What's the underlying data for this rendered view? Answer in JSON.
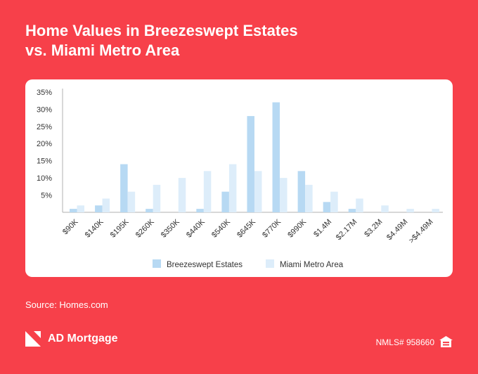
{
  "header": {
    "title_line1": "Home Values in Breezeswept Estates",
    "title_line2": "vs. Miami Metro Area"
  },
  "chart_data": {
    "type": "bar",
    "categories": [
      "$90K",
      "$140K",
      "$195K",
      "$260K",
      "$350K",
      "$440K",
      "$540K",
      "$645K",
      "$770K",
      "$990K",
      "$1.4M",
      "$2.17M",
      "$3.2M",
      "$4.49M",
      ">$4.49M"
    ],
    "series": [
      {
        "name": "Breezeswept Estates",
        "values": [
          1,
          2,
          14,
          1,
          0,
          1,
          6,
          28,
          32,
          12,
          3,
          1,
          0,
          0,
          0
        ]
      },
      {
        "name": "Miami Metro Area",
        "values": [
          2,
          4,
          6,
          8,
          10,
          12,
          14,
          12,
          10,
          8,
          6,
          4,
          2,
          1,
          1
        ]
      }
    ],
    "yticks": [
      5,
      10,
      15,
      20,
      25,
      30,
      35
    ],
    "ytick_labels": [
      "5%",
      "10%",
      "15%",
      "20%",
      "25%",
      "30%",
      "35%"
    ],
    "ylim": [
      0,
      36
    ],
    "grid": false,
    "legend_position": "bottom",
    "colors": {
      "Breezeswept Estates": "#b7d9f3",
      "Miami Metro Area": "#ddedfa"
    }
  },
  "footer": {
    "source": "Source: Homes.com",
    "brand": "AD Mortgage",
    "nmls": "NMLS# 958660"
  },
  "icons": {
    "logo": "ad-mortgage-logo-icon",
    "equal_housing": "equal-housing-icon"
  },
  "colors": {
    "background": "#f7404a",
    "card": "#ffffff"
  }
}
